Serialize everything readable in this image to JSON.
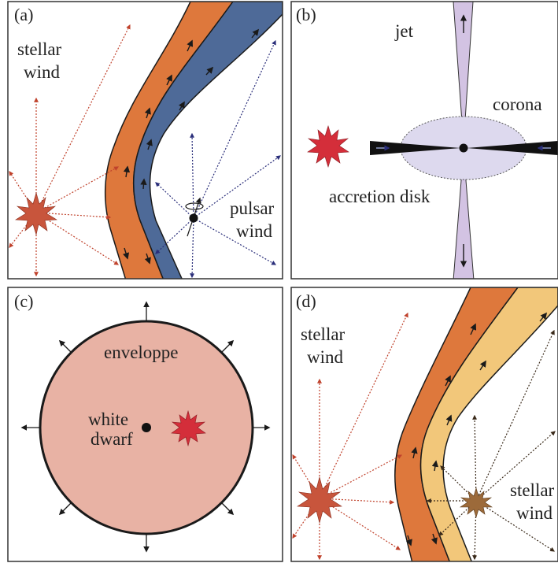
{
  "panels": {
    "a": {
      "tag": "(a)",
      "stellar_wind_line1": "stellar",
      "stellar_wind_line2": "wind",
      "pulsar_wind_line1": "pulsar",
      "pulsar_wind_line2": "wind"
    },
    "b": {
      "tag": "(b)",
      "jet": "jet",
      "corona": "corona",
      "accretion_disk": "accretion disk"
    },
    "c": {
      "tag": "(c)",
      "envelope": "enveloppe",
      "white_dwarf_line1": "white",
      "white_dwarf_line2": "dwarf"
    },
    "d": {
      "tag": "(d)",
      "stellar_wind_left_line1": "stellar",
      "stellar_wind_left_line2": "wind",
      "stellar_wind_right_line1": "stellar",
      "stellar_wind_right_line2": "wind"
    }
  },
  "colors": {
    "frame": "#333333",
    "star_orange": "#c8553c",
    "star_red": "#d42e3a",
    "star_brown": "#9c6a3a",
    "shock_orange": "#de783c",
    "shock_blue": "#4e6a98",
    "shock_yellow": "#f2c77a",
    "wind_red": "#c0422c",
    "wind_blue": "#2a2e7a",
    "wind_brown": "#3a2a1a",
    "jet": "#d3c3e3",
    "corona": "#ddd9ee",
    "envelope": "#e8b2a4",
    "ink": "#1a1a1a"
  }
}
